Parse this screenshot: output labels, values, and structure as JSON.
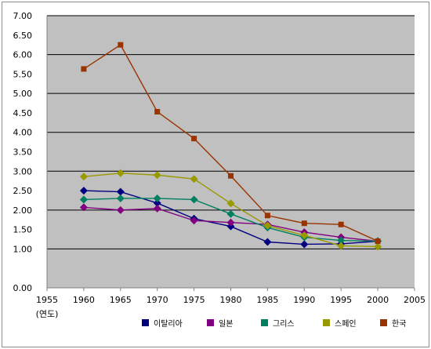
{
  "chart_data": {
    "type": "line",
    "title": "",
    "xlabel": "(연도)",
    "ylabel": "",
    "x": [
      1960,
      1965,
      1970,
      1975,
      1980,
      1985,
      1990,
      1995,
      2000
    ],
    "xlim": [
      1955,
      2005
    ],
    "ylim": [
      0,
      7
    ],
    "xticks": [
      "1955",
      "1960",
      "1965",
      "1970",
      "1975",
      "1980",
      "1985",
      "1990",
      "1995",
      "2000",
      "2005"
    ],
    "yticks": [
      "0.00",
      "1.00",
      "1.50",
      "2.00",
      "2.50",
      "3.00",
      "3.50",
      "4.00",
      "4.50",
      "5.00",
      "5.50",
      "6.00",
      "6.50",
      "7.00"
    ],
    "grid": true,
    "legend_position": "bottom",
    "plot_background": "#c0c0c0",
    "series": [
      {
        "name": "이탈리아",
        "color": "#000080",
        "marker": "diamond",
        "values": [
          2.5,
          2.47,
          2.18,
          1.78,
          1.58,
          1.18,
          1.12,
          1.13,
          1.2
        ]
      },
      {
        "name": "일본",
        "color": "#800080",
        "marker": "diamond",
        "values": [
          2.07,
          2.0,
          2.04,
          1.73,
          1.68,
          1.63,
          1.43,
          1.3,
          1.2
        ]
      },
      {
        "name": "그리스",
        "color": "#008060",
        "marker": "diamond",
        "values": [
          2.27,
          2.3,
          2.3,
          2.27,
          1.9,
          1.55,
          1.3,
          1.22,
          1.2
        ]
      },
      {
        "name": "스페인",
        "color": "#999900",
        "marker": "diamond",
        "values": [
          2.86,
          2.95,
          2.9,
          2.8,
          2.17,
          1.6,
          1.35,
          1.08,
          1.06
        ]
      },
      {
        "name": "한국",
        "color": "#993300",
        "marker": "square",
        "values": [
          5.63,
          6.25,
          4.53,
          3.84,
          2.88,
          1.86,
          1.66,
          1.63,
          1.2
        ]
      }
    ]
  }
}
